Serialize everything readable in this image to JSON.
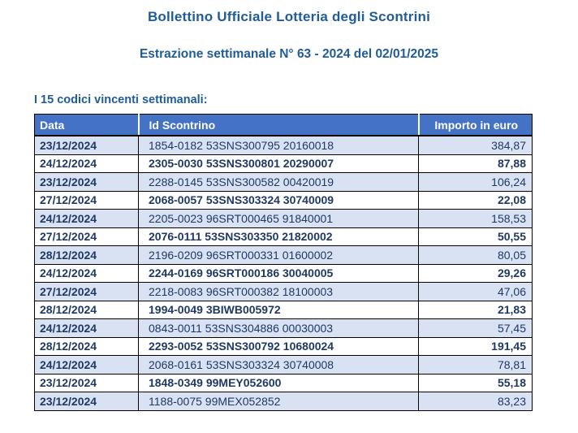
{
  "page": {
    "title": "Bollettino Ufficiale Lotteria degli Scontrini",
    "subtitle": "Estrazione settimanale N° 63 - 2024 del 02/01/2025",
    "list_label": "I 15 codici vincenti settimanali:"
  },
  "colors": {
    "header_bg": "#4472C4",
    "header_text": "#FFFFFF",
    "alt_row_bg": "#D9E2F3",
    "title_text": "#1F5C99",
    "body_text": "#1F3864",
    "border": "#000000"
  },
  "table": {
    "columns": [
      "Data",
      "Id Scontrino",
      "Importo in euro"
    ],
    "rows": [
      {
        "date": "23/12/2024",
        "id": "1854-0182 53SNS300795 20160018",
        "amount": "384,87",
        "bold": false
      },
      {
        "date": "24/12/2024",
        "id": "2305-0030 53SNS300801 20290007",
        "amount": "87,88",
        "bold": true
      },
      {
        "date": "23/12/2024",
        "id": "2288-0145 53SNS300582 00420019",
        "amount": "106,24",
        "bold": false
      },
      {
        "date": "27/12/2024",
        "id": "2068-0057 53SNS303324 30740009",
        "amount": "22,08",
        "bold": true
      },
      {
        "date": "24/12/2024",
        "id": "2205-0023 96SRT000465 91840001",
        "amount": "158,53",
        "bold": false
      },
      {
        "date": "27/12/2024",
        "id": "2076-0111 53SNS303350 21820002",
        "amount": "50,55",
        "bold": true
      },
      {
        "date": "28/12/2024",
        "id": "2196-0209 96SRT000331 01600002",
        "amount": "80,05",
        "bold": false
      },
      {
        "date": "24/12/2024",
        "id": "2244-0169 96SRT000186 30040005",
        "amount": "29,26",
        "bold": true
      },
      {
        "date": "27/12/2024",
        "id": "2218-0083 96SRT000382 18100003",
        "amount": "47,06",
        "bold": false
      },
      {
        "date": "28/12/2024",
        "id": "1994-0049 3BIWB005972",
        "amount": "21,83",
        "bold": true
      },
      {
        "date": "24/12/2024",
        "id": "0843-0011 53SNS304886 00030003",
        "amount": "57,45",
        "bold": false
      },
      {
        "date": "28/12/2024",
        "id": "2293-0052 53SNS300792 10680024",
        "amount": "191,45",
        "bold": true
      },
      {
        "date": "24/12/2024",
        "id": "2068-0161 53SNS303324 30740008",
        "amount": "78,81",
        "bold": false
      },
      {
        "date": "23/12/2024",
        "id": "1848-0349 99MEY052600",
        "amount": "55,18",
        "bold": true
      },
      {
        "date": "23/12/2024",
        "id": "1188-0075 99MEX052852",
        "amount": "83,23",
        "bold": false
      }
    ]
  }
}
